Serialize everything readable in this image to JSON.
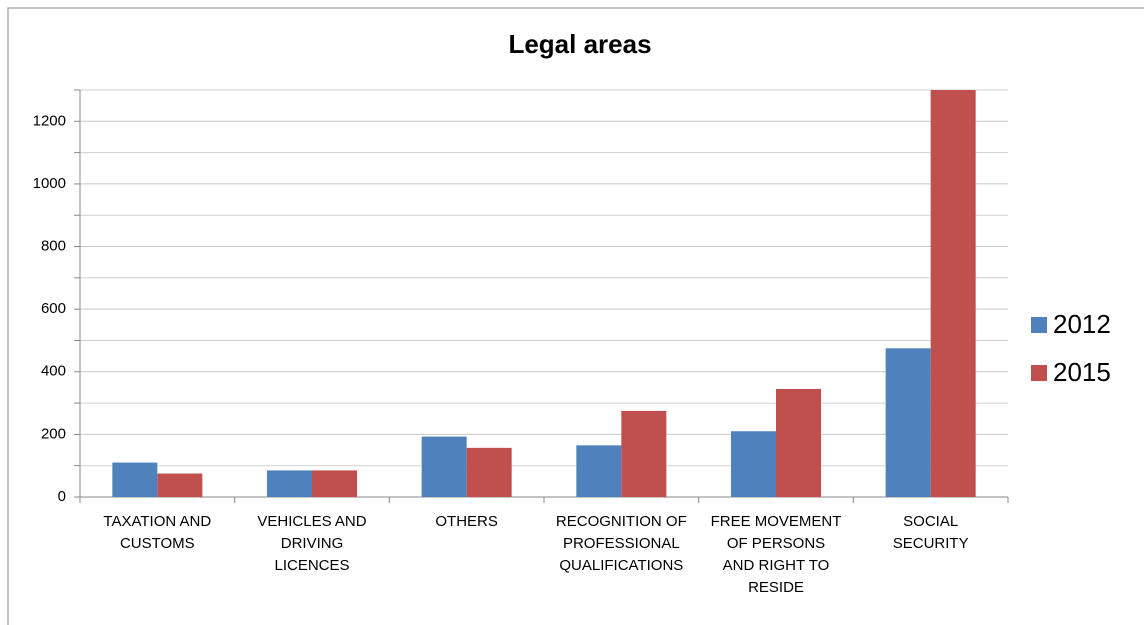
{
  "chart_data": {
    "type": "bar",
    "title": "Legal areas",
    "categories": [
      "TAXATION AND CUSTOMS",
      "VEHICLES AND DRIVING LICENCES",
      "OTHERS",
      "RECOGNITION OF PROFESSIONAL QUALIFICATIONS",
      "FREE MOVEMENT OF PERSONS AND RIGHT TO RESIDE",
      "SOCIAL SECURITY"
    ],
    "series": [
      {
        "name": "2012",
        "color": "#4f81bd",
        "values": [
          110,
          85,
          193,
          165,
          210,
          475
        ]
      },
      {
        "name": "2015",
        "color": "#c0504d",
        "values": [
          75,
          85,
          157,
          275,
          345,
          1300
        ]
      }
    ],
    "ylim": [
      0,
      1300
    ],
    "yticks": [
      0,
      200,
      400,
      600,
      800,
      1000,
      1200
    ],
    "yticks_minor": [
      100,
      300,
      500,
      700,
      900,
      1100,
      1300
    ],
    "grid": true,
    "legend": "right"
  }
}
